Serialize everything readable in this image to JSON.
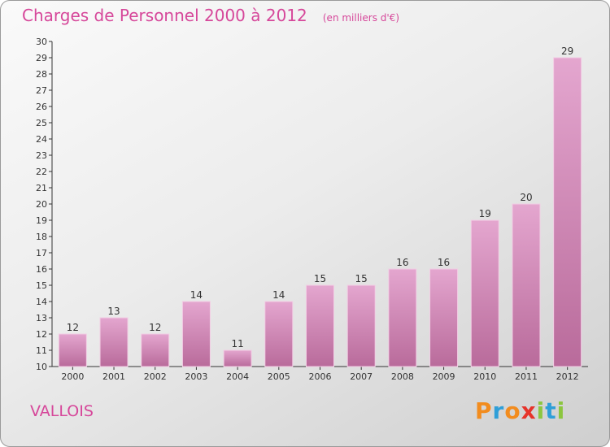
{
  "header": {
    "title": "Charges de Personnel 2000 à 2012",
    "subtitle": "(en milliers d'€)"
  },
  "footer": {
    "city": "VALLOIS",
    "logo_text": "Proxiti"
  },
  "colors": {
    "accent": "#d6479a",
    "bar_top": "#e4a6cf",
    "bar_bottom": "#b96b9b",
    "bar_edge": "#f2cde4",
    "logo": [
      "#f28c1e",
      "#2f9fd8",
      "#f28c1e",
      "#e6332a",
      "#8cc63f",
      "#2f9fd8",
      "#8cc63f"
    ]
  },
  "chart_data": {
    "type": "bar",
    "categories": [
      "2000",
      "2001",
      "2002",
      "2003",
      "2004",
      "2005",
      "2006",
      "2007",
      "2008",
      "2009",
      "2010",
      "2011",
      "2012"
    ],
    "values": [
      12,
      13,
      12,
      14,
      11,
      14,
      15,
      15,
      16,
      16,
      19,
      20,
      29
    ],
    "title": "Charges de Personnel 2000 à 2012",
    "subtitle": "(en milliers d'€)",
    "ylim": [
      10,
      30
    ],
    "yticks": [
      10,
      11,
      12,
      13,
      14,
      15,
      16,
      17,
      18,
      19,
      20,
      21,
      22,
      23,
      24,
      25,
      26,
      27,
      28,
      29,
      30
    ],
    "grid": false,
    "legend": "none"
  }
}
